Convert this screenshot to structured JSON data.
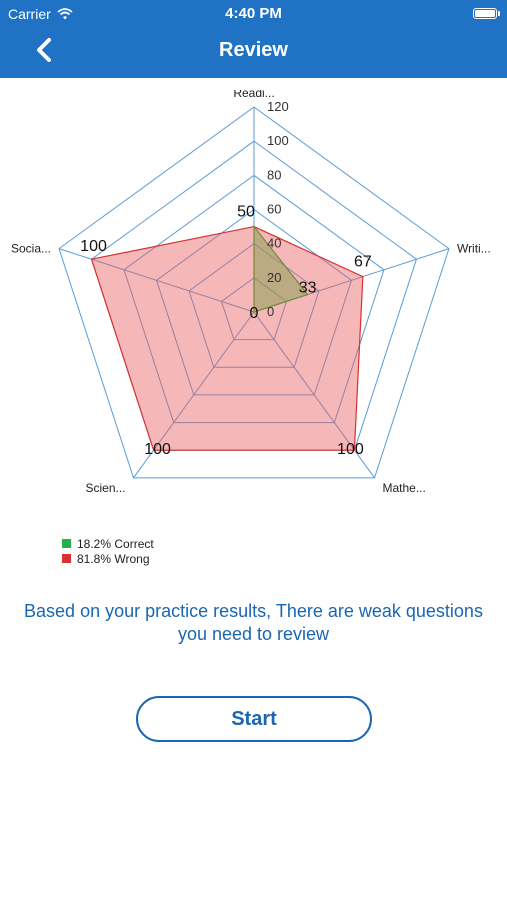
{
  "status_bar": {
    "carrier": "Carrier",
    "time": "4:40 PM"
  },
  "nav": {
    "title": "Review",
    "back_icon": "chevron-left-icon"
  },
  "colors": {
    "header_bg": "#1f72c4",
    "correct": "#22b14c",
    "wrong": "#d63232",
    "grid": "#5b9bd5",
    "text_blue": "#1a66b3"
  },
  "chart_data": {
    "type": "radar",
    "axes": [
      "Readi...",
      "Writi...",
      "Mathe...",
      "Scien...",
      "Socia..."
    ],
    "scale": {
      "min": 0,
      "max": 120,
      "ticks": [
        0,
        20,
        40,
        60,
        80,
        100,
        120
      ]
    },
    "series": [
      {
        "name": "Wrong",
        "values": [
          50,
          67,
          100,
          100,
          100
        ],
        "labels": [
          "50",
          "67",
          "100",
          "100",
          "100"
        ]
      },
      {
        "name": "Correct",
        "values": [
          50,
          33,
          0,
          0,
          0
        ],
        "labels": [
          "",
          "33",
          "",
          "",
          ""
        ]
      }
    ],
    "center_label": "0",
    "legend": [
      {
        "label": "18.2% Correct",
        "color": "#22b14c"
      },
      {
        "label": "81.8% Wrong",
        "color": "#d63232"
      }
    ]
  },
  "message": "Based on your practice results, There are weak questions you need to review",
  "start_button": "Start"
}
